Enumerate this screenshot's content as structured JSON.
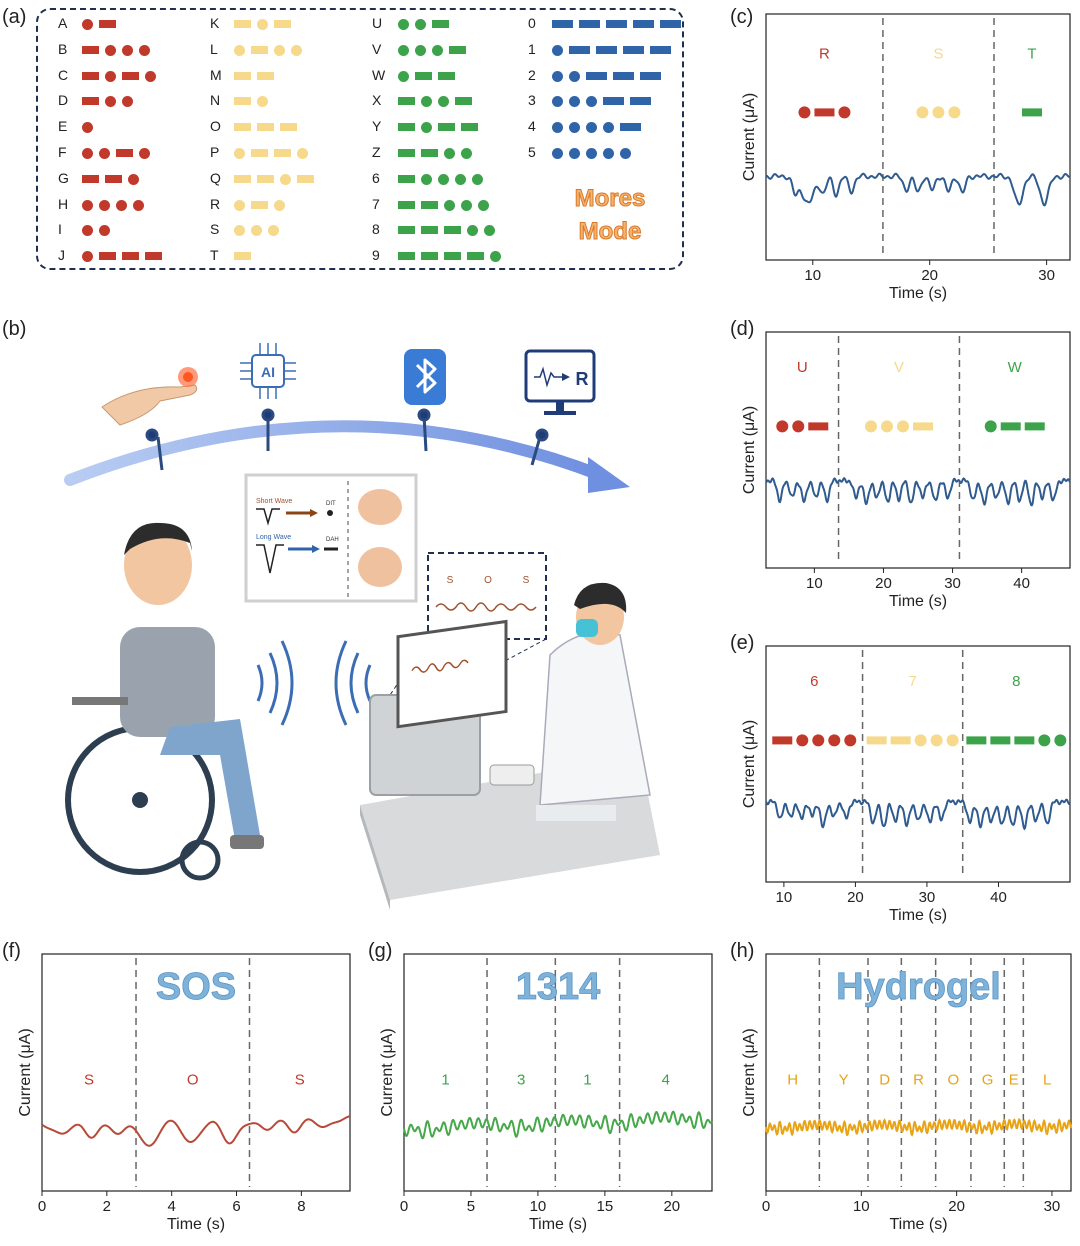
{
  "panel_labels": {
    "a": "(a)",
    "b": "(b)",
    "c": "(c)",
    "d": "(d)",
    "e": "(e)",
    "f": "(f)",
    "g": "(g)",
    "h": "(h)"
  },
  "morse_code": {
    "title_line1": "Mores",
    "title_line2": "Mode",
    "columns": [
      {
        "color": "#c0392b",
        "items": [
          {
            "char": "A",
            "code": ".-"
          },
          {
            "char": "B",
            "code": "-..."
          },
          {
            "char": "C",
            "code": "-.-."
          },
          {
            "char": "D",
            "code": "-.."
          },
          {
            "char": "E",
            "code": "."
          },
          {
            "char": "F",
            "code": "..-."
          },
          {
            "char": "G",
            "code": "--."
          },
          {
            "char": "H",
            "code": "...."
          },
          {
            "char": "I",
            "code": ".."
          },
          {
            "char": "J",
            "code": ".---"
          }
        ]
      },
      {
        "color": "#f6d98b",
        "items": [
          {
            "char": "K",
            "code": "-.-"
          },
          {
            "char": "L",
            "code": ".-.."
          },
          {
            "char": "M",
            "code": "--"
          },
          {
            "char": "N",
            "code": "-."
          },
          {
            "char": "O",
            "code": "---"
          },
          {
            "char": "P",
            "code": ".--."
          },
          {
            "char": "Q",
            "code": "--.-"
          },
          {
            "char": "R",
            "code": ".-."
          },
          {
            "char": "S",
            "code": "..."
          },
          {
            "char": "T",
            "code": "-"
          }
        ]
      },
      {
        "color": "#3da34a",
        "items": [
          {
            "char": "U",
            "code": "..-"
          },
          {
            "char": "V",
            "code": "...-"
          },
          {
            "char": "W",
            "code": ".--"
          },
          {
            "char": "X",
            "code": "-..-"
          },
          {
            "char": "Y",
            "code": "-.--"
          },
          {
            "char": "Z",
            "code": "--.."
          },
          {
            "char": "6",
            "code": "-...."
          },
          {
            "char": "7",
            "code": "--..."
          },
          {
            "char": "8",
            "code": "---.."
          },
          {
            "char": "9",
            "code": "----."
          }
        ]
      },
      {
        "color": "#2f64a8",
        "items": [
          {
            "char": "0",
            "code": "-----"
          },
          {
            "char": "1",
            "code": ".----"
          },
          {
            "char": "2",
            "code": "..---"
          },
          {
            "char": "3",
            "code": "...--"
          },
          {
            "char": "4",
            "code": "....-"
          },
          {
            "char": "5",
            "code": "....."
          }
        ]
      }
    ]
  },
  "scene": {
    "short_wave_label": "Short Wave",
    "long_wave_label": "Long Wave",
    "dit_label": "DIT",
    "dah_label": "DAH",
    "ai_label": "AI",
    "monitor_letter": "R",
    "screen_letters": [
      "S",
      "O",
      "S"
    ]
  },
  "colors": {
    "red": "#c0392b",
    "yellow": "#f6d98b",
    "green": "#3da34a",
    "blue_signal": "#2f5b8f",
    "orange": "#e8a317",
    "title_blue": "#7fb2d9"
  },
  "chart_data": [
    {
      "panel": "c",
      "type": "line",
      "xlabel": "Time (s)",
      "ylabel": "Current (μA)",
      "xlim": [
        6,
        32
      ],
      "xticks": [
        10,
        20,
        30
      ],
      "dividers": [
        16,
        25.5
      ],
      "segments": [
        {
          "letter": "R",
          "color": "#c0392b",
          "code": ".-."
        },
        {
          "letter": "S",
          "color": "#f6d98b",
          "code": "..."
        },
        {
          "letter": "T",
          "color": "#3da34a",
          "code": "-"
        }
      ],
      "series": [
        {
          "color": "#2f5b8f",
          "pulses": [
            {
              "x": 8.5,
              "depth": 0.55,
              "w": 0.35
            },
            {
              "x": 9.6,
              "depth": 0.9,
              "w": 0.7
            },
            {
              "x": 10.9,
              "depth": 0.55,
              "w": 0.35
            },
            {
              "x": 12.0,
              "depth": 0.6,
              "w": 0.35
            },
            {
              "x": 13.3,
              "depth": 0.5,
              "w": 0.35
            },
            {
              "x": 18.0,
              "depth": 0.45,
              "w": 0.35
            },
            {
              "x": 19.0,
              "depth": 0.5,
              "w": 0.35
            },
            {
              "x": 20.2,
              "depth": 0.45,
              "w": 0.35
            },
            {
              "x": 21.6,
              "depth": 0.5,
              "w": 0.35
            },
            {
              "x": 22.8,
              "depth": 0.55,
              "w": 0.35
            },
            {
              "x": 27.6,
              "depth": 0.95,
              "w": 0.5
            },
            {
              "x": 29.8,
              "depth": 0.9,
              "w": 0.5
            }
          ]
        }
      ]
    },
    {
      "panel": "d",
      "type": "line",
      "xlabel": "Time (s)",
      "ylabel": "Current (μA)",
      "xlim": [
        3,
        47
      ],
      "xticks": [
        10,
        20,
        30,
        40
      ],
      "dividers": [
        13.5,
        31
      ],
      "segments": [
        {
          "letter": "U",
          "color": "#c0392b",
          "code": "..-"
        },
        {
          "letter": "V",
          "color": "#f6d98b",
          "code": "...-"
        },
        {
          "letter": "W",
          "color": "#3da34a",
          "code": ".--"
        }
      ],
      "series": [
        {
          "color": "#2f5b8f",
          "pulses": [
            {
              "x": 5,
              "depth": 0.7,
              "w": 0.5
            },
            {
              "x": 6.8,
              "depth": 0.6,
              "w": 0.5
            },
            {
              "x": 8.5,
              "depth": 0.75,
              "w": 0.5
            },
            {
              "x": 10.2,
              "depth": 0.6,
              "w": 0.5
            },
            {
              "x": 11.8,
              "depth": 0.7,
              "w": 0.5
            },
            {
              "x": 16,
              "depth": 0.6,
              "w": 0.5
            },
            {
              "x": 17.5,
              "depth": 0.8,
              "w": 0.5
            },
            {
              "x": 19,
              "depth": 0.6,
              "w": 0.5
            },
            {
              "x": 20.6,
              "depth": 0.75,
              "w": 0.5
            },
            {
              "x": 22.2,
              "depth": 0.65,
              "w": 0.5
            },
            {
              "x": 24,
              "depth": 0.8,
              "w": 0.5
            },
            {
              "x": 25.7,
              "depth": 0.6,
              "w": 0.5
            },
            {
              "x": 27.5,
              "depth": 0.75,
              "w": 0.5
            },
            {
              "x": 29.3,
              "depth": 0.6,
              "w": 0.5
            },
            {
              "x": 33,
              "depth": 0.7,
              "w": 0.5
            },
            {
              "x": 34.6,
              "depth": 0.85,
              "w": 0.5
            },
            {
              "x": 36.3,
              "depth": 0.65,
              "w": 0.5
            },
            {
              "x": 38,
              "depth": 0.8,
              "w": 0.5
            },
            {
              "x": 39.7,
              "depth": 0.7,
              "w": 0.5
            },
            {
              "x": 41.4,
              "depth": 0.85,
              "w": 0.5
            },
            {
              "x": 43,
              "depth": 0.6,
              "w": 0.5
            },
            {
              "x": 44.6,
              "depth": 0.7,
              "w": 0.5
            }
          ]
        }
      ]
    },
    {
      "panel": "e",
      "type": "line",
      "xlabel": "Time (s)",
      "ylabel": "Current (μA)",
      "xlim": [
        7.5,
        50
      ],
      "xticks": [
        10,
        20,
        30,
        40
      ],
      "dividers": [
        21,
        35
      ],
      "segments": [
        {
          "letter": "6",
          "color": "#c0392b",
          "code": "-...."
        },
        {
          "letter": "7",
          "color": "#f6d98b",
          "code": "--..."
        },
        {
          "letter": "8",
          "color": "#3da34a",
          "code": "---.."
        }
      ],
      "series": [
        {
          "color": "#2f5b8f",
          "pulses": [
            {
              "x": 9.5,
              "depth": 0.6,
              "w": 0.5
            },
            {
              "x": 11,
              "depth": 0.55,
              "w": 0.5
            },
            {
              "x": 12.5,
              "depth": 0.6,
              "w": 0.5
            },
            {
              "x": 14,
              "depth": 0.5,
              "w": 0.5
            },
            {
              "x": 15.5,
              "depth": 0.9,
              "w": 0.5
            },
            {
              "x": 17,
              "depth": 0.55,
              "w": 0.5
            },
            {
              "x": 18.7,
              "depth": 0.6,
              "w": 0.5
            },
            {
              "x": 22.5,
              "depth": 0.75,
              "w": 0.5
            },
            {
              "x": 24,
              "depth": 0.9,
              "w": 0.5
            },
            {
              "x": 25.6,
              "depth": 0.7,
              "w": 0.5
            },
            {
              "x": 27.2,
              "depth": 0.85,
              "w": 0.5
            },
            {
              "x": 28.8,
              "depth": 0.7,
              "w": 0.5
            },
            {
              "x": 30.4,
              "depth": 0.75,
              "w": 0.5
            },
            {
              "x": 32,
              "depth": 0.65,
              "w": 0.5
            },
            {
              "x": 36,
              "depth": 0.75,
              "w": 0.5
            },
            {
              "x": 37.5,
              "depth": 0.9,
              "w": 0.5
            },
            {
              "x": 39,
              "depth": 0.75,
              "w": 0.5
            },
            {
              "x": 40.5,
              "depth": 0.85,
              "w": 0.5
            },
            {
              "x": 42,
              "depth": 0.9,
              "w": 0.5
            },
            {
              "x": 43.6,
              "depth": 0.95,
              "w": 0.5
            },
            {
              "x": 45.2,
              "depth": 0.7,
              "w": 0.5
            },
            {
              "x": 46.8,
              "depth": 0.8,
              "w": 0.5
            }
          ]
        }
      ]
    },
    {
      "panel": "f",
      "type": "line",
      "title": "SOS",
      "xlabel": "Time (s)",
      "ylabel": "Current (μA)",
      "xlim": [
        0,
        9.5
      ],
      "xticks": [
        0,
        2,
        4,
        6,
        8
      ],
      "dividers": [
        2.9,
        6.4
      ],
      "segments": [
        {
          "letter": "S",
          "color": "#c0392b"
        },
        {
          "letter": "O",
          "color": "#c0392b"
        },
        {
          "letter": "S",
          "color": "#c0392b"
        }
      ],
      "series": [
        {
          "color": "#b84a3a",
          "pulses": [
            {
              "x": 0.6,
              "depth": 0.35,
              "w": 0.3
            },
            {
              "x": 1.5,
              "depth": 0.45,
              "w": 0.3
            },
            {
              "x": 2.4,
              "depth": 0.4,
              "w": 0.3
            },
            {
              "x": 3.3,
              "depth": 0.85,
              "w": 0.35
            },
            {
              "x": 4.6,
              "depth": 0.75,
              "w": 0.35
            },
            {
              "x": 5.8,
              "depth": 0.8,
              "w": 0.35
            },
            {
              "x": 6.9,
              "depth": 0.4,
              "w": 0.3
            },
            {
              "x": 7.8,
              "depth": 0.4,
              "w": 0.3
            },
            {
              "x": 8.7,
              "depth": 0.35,
              "w": 0.3
            }
          ],
          "trend": -0.25
        }
      ]
    },
    {
      "panel": "g",
      "type": "line",
      "title": "1314",
      "xlabel": "Time (s)",
      "ylabel": "Current (μA)",
      "xlim": [
        0,
        23
      ],
      "xticks": [
        0,
        5,
        10,
        15,
        20
      ],
      "dividers": [
        6.2,
        11.3,
        16.1
      ],
      "segments": [
        {
          "letter": "1",
          "color": "#3da34a"
        },
        {
          "letter": "3",
          "color": "#3da34a"
        },
        {
          "letter": "1",
          "color": "#3da34a"
        },
        {
          "letter": "4",
          "color": "#3da34a"
        }
      ],
      "series": [
        {
          "color": "#46a84a",
          "oscillate": true,
          "trend": -0.45
        }
      ]
    },
    {
      "panel": "h",
      "type": "line",
      "title": "Hydrogel",
      "xlabel": "Time (s)",
      "ylabel": "Current (μA)",
      "xlim": [
        0,
        32
      ],
      "xticks": [
        0,
        10,
        20,
        30
      ],
      "dividers": [
        5.6,
        10.7,
        14.2,
        17.8,
        21.5,
        25,
        27
      ],
      "segments": [
        {
          "letter": "H",
          "color": "#e8a317"
        },
        {
          "letter": "Y",
          "color": "#e8a317"
        },
        {
          "letter": "D",
          "color": "#e8a317"
        },
        {
          "letter": "R",
          "color": "#e8a317"
        },
        {
          "letter": "O",
          "color": "#e8a317"
        },
        {
          "letter": "G",
          "color": "#e8a317"
        },
        {
          "letter": "E",
          "color": "#e8a317"
        },
        {
          "letter": "L",
          "color": "#e8a317"
        }
      ],
      "series": [
        {
          "color": "#e8a317",
          "oscillate": true,
          "dense": true,
          "trend": -0.1
        }
      ]
    }
  ]
}
